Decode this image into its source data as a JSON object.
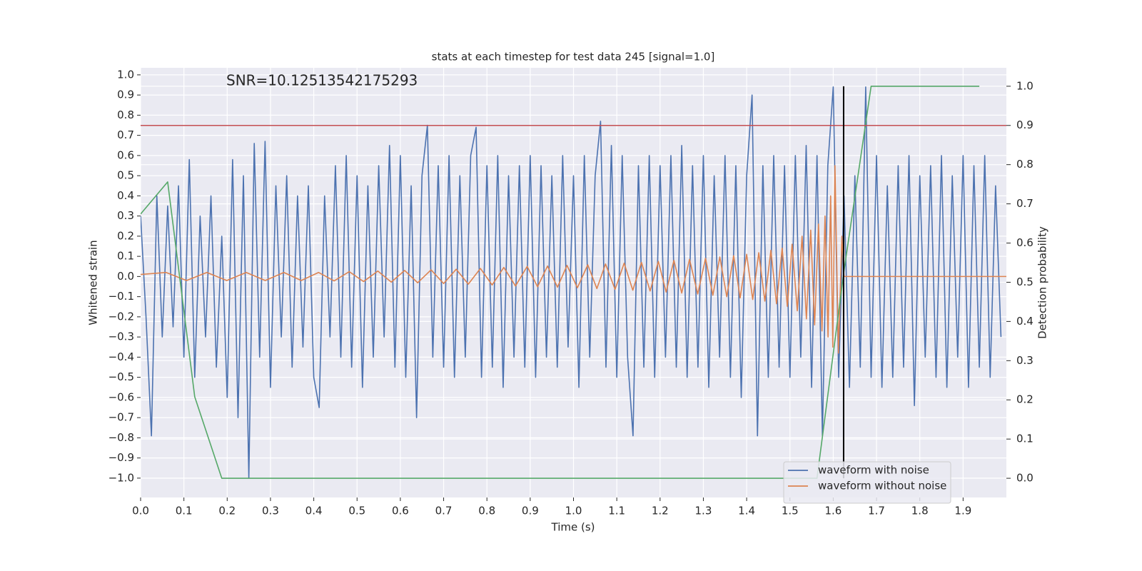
{
  "chart_data": {
    "type": "line",
    "title": "stats at each timestep for test data 245 [signal=1.0]",
    "annotation": "SNR=10.12513542175293",
    "x_label": "Time (s)",
    "y_label": "Whitened strain",
    "y2_label": "Detection probability",
    "xlim": [
      0,
      2.0
    ],
    "ylim": [
      -1.096,
      1.035
    ],
    "y2lim": [
      -0.049,
      1.047
    ],
    "xticks": [
      {
        "value": 0,
        "label": "0.0"
      },
      0.1,
      0.2,
      0.3,
      0.4,
      0.5,
      0.6,
      0.7,
      0.8,
      0.9,
      {
        "value": 1,
        "label": "1.0"
      },
      1.1,
      1.2,
      1.3,
      1.4,
      1.5,
      1.6,
      1.7,
      1.8,
      1.9
    ],
    "yticks": [
      {
        "value": -1,
        "label": "−1.0"
      },
      {
        "value": -0.9,
        "label": "−0.9"
      },
      {
        "value": -0.8,
        "label": "−0.8"
      },
      {
        "value": -0.7,
        "label": "−0.7"
      },
      {
        "value": -0.6,
        "label": "−0.6"
      },
      {
        "value": -0.5,
        "label": "−0.5"
      },
      {
        "value": -0.4,
        "label": "−0.4"
      },
      {
        "value": -0.3,
        "label": "−0.3"
      },
      {
        "value": -0.2,
        "label": "−0.2"
      },
      {
        "value": -0.1,
        "label": "−0.1"
      },
      {
        "value": 0,
        "label": "0.0"
      },
      0.1,
      0.2,
      0.3,
      0.4,
      0.5,
      0.6,
      0.7,
      0.8,
      0.9,
      {
        "value": 1,
        "label": "1.0"
      }
    ],
    "y2ticks": [
      {
        "value": 0,
        "label": "0.0"
      },
      0.1,
      0.2,
      0.3,
      0.4,
      0.5,
      0.6,
      0.7,
      0.8,
      0.9,
      {
        "value": 1,
        "label": "1.0"
      }
    ],
    "grid": true,
    "legend": "lower right",
    "series": [
      {
        "name": "waveform with noise",
        "color": "#4c72b0",
        "x": [
          0,
          0.0125,
          0.025,
          0.0375,
          0.05,
          0.0625,
          0.075,
          0.0875,
          0.1,
          0.1125,
          0.125,
          0.1375,
          0.15,
          0.1625,
          0.175,
          0.1875,
          0.2,
          0.2125,
          0.225,
          0.2375,
          0.25,
          0.2625,
          0.275,
          0.2875,
          0.3,
          0.3125,
          0.325,
          0.3375,
          0.35,
          0.3625,
          0.375,
          0.3875,
          0.4,
          0.4125,
          0.425,
          0.4375,
          0.45,
          0.4625,
          0.475,
          0.4875,
          0.5,
          0.5125,
          0.525,
          0.5375,
          0.55,
          0.5625,
          0.575,
          0.5875,
          0.6,
          0.6125,
          0.625,
          0.6375,
          0.65,
          0.6625,
          0.675,
          0.6875,
          0.7,
          0.7125,
          0.725,
          0.7375,
          0.75,
          0.7625,
          0.775,
          0.7875,
          0.8,
          0.8125,
          0.825,
          0.8375,
          0.85,
          0.8625,
          0.875,
          0.8875,
          0.9,
          0.9125,
          0.925,
          0.9375,
          0.95,
          0.9625,
          0.975,
          0.9875,
          1,
          1.0125,
          1.025,
          1.0375,
          1.05,
          1.0625,
          1.075,
          1.0875,
          1.1,
          1.1125,
          1.125,
          1.1375,
          1.15,
          1.1625,
          1.175,
          1.1875,
          1.2,
          1.2125,
          1.225,
          1.2375,
          1.25,
          1.2625,
          1.275,
          1.2875,
          1.3,
          1.3125,
          1.325,
          1.3375,
          1.35,
          1.3625,
          1.375,
          1.3875,
          1.4,
          1.4125,
          1.425,
          1.4375,
          1.45,
          1.4625,
          1.475,
          1.4875,
          1.5,
          1.5125,
          1.525,
          1.5375,
          1.55,
          1.5625,
          1.575,
          1.5875,
          1.6,
          1.6125,
          1.625,
          1.6375,
          1.65,
          1.6625,
          1.675,
          1.6875,
          1.7,
          1.7125,
          1.725,
          1.7375,
          1.75,
          1.7625,
          1.775,
          1.7875,
          1.8,
          1.8125,
          1.825,
          1.8375,
          1.85,
          1.8625,
          1.875,
          1.8875,
          1.9,
          1.9125,
          1.925,
          1.9375,
          1.95,
          1.9625,
          1.975,
          1.9875
        ],
        "values": [
          0.3,
          -0.2,
          -0.79,
          0.4,
          -0.3,
          0.35,
          -0.25,
          0.45,
          -0.4,
          0.58,
          -0.5,
          0.3,
          -0.3,
          0.4,
          -0.45,
          0.2,
          -0.6,
          0.58,
          -0.7,
          0.5,
          -1.0,
          0.66,
          -0.4,
          0.67,
          -0.55,
          0.45,
          -0.3,
          0.5,
          -0.45,
          0.4,
          -0.35,
          0.45,
          -0.5,
          -0.65,
          0.4,
          -0.3,
          0.55,
          -0.4,
          0.6,
          -0.45,
          0.5,
          -0.55,
          0.45,
          -0.4,
          0.55,
          -0.3,
          0.65,
          -0.45,
          0.6,
          -0.5,
          0.45,
          -0.7,
          0.5,
          0.75,
          -0.4,
          0.55,
          -0.45,
          0.6,
          -0.5,
          0.5,
          -0.4,
          0.6,
          0.74,
          -0.5,
          0.55,
          -0.45,
          0.6,
          -0.55,
          0.5,
          -0.4,
          0.55,
          -0.45,
          0.6,
          -0.5,
          0.55,
          -0.4,
          0.5,
          -0.45,
          0.6,
          -0.35,
          0.5,
          -0.55,
          0.6,
          -0.4,
          0.5,
          0.77,
          -0.45,
          0.65,
          -0.5,
          0.6,
          -0.4,
          -0.79,
          0.55,
          -0.45,
          0.6,
          -0.5,
          0.55,
          -0.4,
          0.6,
          -0.45,
          0.65,
          -0.5,
          0.55,
          -0.45,
          0.6,
          -0.55,
          0.5,
          -0.4,
          0.6,
          -0.5,
          0.55,
          -0.6,
          0.5,
          0.9,
          -0.79,
          0.55,
          -0.5,
          0.6,
          -0.45,
          0.55,
          -0.5,
          0.6,
          -0.4,
          0.65,
          -0.55,
          0.6,
          -0.79,
          0.55,
          0.94,
          -0.5,
          0.4,
          -0.55,
          0.5,
          -0.45,
          0.94,
          -0.5,
          0.6,
          -0.55,
          0.45,
          -0.5,
          0.55,
          -0.45,
          0.6,
          -0.64,
          0.5,
          -0.4,
          0.55,
          -0.5,
          0.6,
          -0.55,
          0.5,
          -0.4,
          0.6,
          -0.55,
          0.55,
          -0.45,
          0.6,
          -0.5,
          0.45,
          -0.3
        ]
      },
      {
        "name": "waveform without noise",
        "color": "#dd8452",
        "x": [
          0,
          0.059,
          0.106,
          0.153,
          0.199,
          0.244,
          0.288,
          0.331,
          0.371,
          0.411,
          0.447,
          0.482,
          0.515,
          0.548,
          0.579,
          0.61,
          0.64,
          0.671,
          0.7,
          0.729,
          0.757,
          0.785,
          0.812,
          0.839,
          0.866,
          0.893,
          0.917,
          0.94,
          0.963,
          0.985,
          1.009,
          1.033,
          1.054,
          1.074,
          1.096,
          1.117,
          1.137,
          1.157,
          1.177,
          1.196,
          1.214,
          1.232,
          1.25,
          1.268,
          1.287,
          1.305,
          1.322,
          1.338,
          1.354,
          1.37,
          1.385,
          1.4,
          1.414,
          1.428,
          1.442,
          1.456,
          1.469,
          1.482,
          1.494,
          1.505,
          1.517,
          1.528,
          1.538,
          1.548,
          1.557,
          1.566,
          1.574,
          1.581,
          1.588,
          1.594,
          1.599,
          1.604,
          1.612,
          1.62,
          1.625,
          2.0
        ],
        "values": [
          0.01,
          0.02,
          -0.02,
          0.02,
          -0.02,
          0.02,
          -0.02,
          0.02,
          -0.02,
          0.02,
          -0.022,
          0.024,
          -0.025,
          0.027,
          -0.028,
          0.03,
          -0.031,
          0.033,
          -0.035,
          0.036,
          -0.038,
          0.04,
          -0.042,
          0.045,
          -0.047,
          0.05,
          -0.051,
          0.052,
          -0.053,
          0.055,
          -0.056,
          0.058,
          -0.06,
          0.062,
          -0.064,
          0.066,
          -0.068,
          0.07,
          -0.072,
          0.075,
          -0.077,
          0.08,
          -0.082,
          0.085,
          -0.087,
          0.09,
          -0.093,
          0.097,
          -0.1,
          0.103,
          -0.106,
          0.11,
          -0.114,
          0.118,
          -0.122,
          0.13,
          -0.135,
          0.14,
          -0.148,
          0.16,
          -0.17,
          0.2,
          -0.21,
          0.23,
          -0.24,
          0.26,
          -0.27,
          0.3,
          -0.3,
          0.4,
          -0.35,
          0.55,
          -0.38,
          0.2,
          0,
          0
        ]
      },
      {
        "color": "#55a868",
        "axis": "y2",
        "x": [
          0,
          0.0625,
          0.125,
          0.1875,
          0.25,
          0.3125,
          0.375,
          0.4375,
          0.5,
          0.5625,
          0.625,
          0.6875,
          0.75,
          0.8125,
          0.875,
          0.9375,
          1,
          1.0625,
          1.125,
          1.1875,
          1.25,
          1.3125,
          1.375,
          1.4375,
          1.5,
          1.5625,
          1.625,
          1.6875,
          1.75,
          1.8125,
          1.875,
          1.9375
        ],
        "values": [
          0.674,
          0.756,
          0.208,
          0,
          0,
          0,
          0,
          0,
          0,
          0,
          0,
          0,
          0,
          0,
          0,
          0,
          0,
          0,
          0,
          0,
          0,
          0,
          0,
          0,
          0,
          0,
          0.53,
          1,
          1,
          1,
          1,
          1
        ]
      }
    ],
    "hlines": [
      {
        "value": 0.9,
        "axis": "y2",
        "color": "#c44e52"
      }
    ],
    "vlines": [
      {
        "value": 1.624,
        "y2_range": [
          0,
          1
        ],
        "color": "#000000"
      }
    ]
  }
}
